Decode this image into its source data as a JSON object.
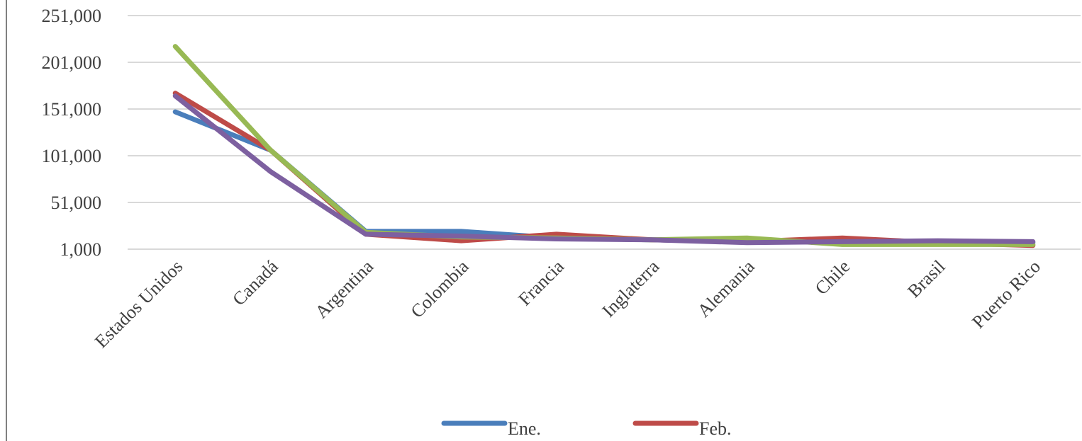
{
  "chart_data": {
    "type": "line",
    "title": "",
    "xlabel": "",
    "ylabel": "",
    "categories": [
      "Estados Unidos",
      "Canadá",
      "Argentina",
      "Colombia",
      "Francia",
      "Inglaterra",
      "Alemania",
      "Chile",
      "Brasil",
      "Puerto Rico"
    ],
    "yticks": [
      "1,000",
      "51,000",
      "101,000",
      "151,000",
      "201,000",
      "251,000"
    ],
    "ylim": [
      1000,
      251000
    ],
    "grid": true,
    "legend_position": "bottom",
    "series": [
      {
        "name": "Ene.",
        "color": "#4a7ebb",
        "values": [
          148000,
          107000,
          20000,
          20000,
          13000,
          11000,
          9000,
          9000,
          9000,
          8000
        ]
      },
      {
        "name": "Feb.",
        "color": "#be4b48",
        "values": [
          168000,
          107000,
          17000,
          10000,
          17000,
          11000,
          9000,
          13000,
          8000,
          5000
        ]
      },
      {
        "name": "",
        "color": "#98b954",
        "values": [
          218000,
          107000,
          19000,
          14000,
          13000,
          11000,
          13000,
          6000,
          6000,
          6000
        ]
      },
      {
        "name": "",
        "color": "#7d60a0",
        "values": [
          165000,
          84000,
          17000,
          15000,
          12000,
          11000,
          8000,
          9000,
          10000,
          9000
        ]
      }
    ]
  }
}
